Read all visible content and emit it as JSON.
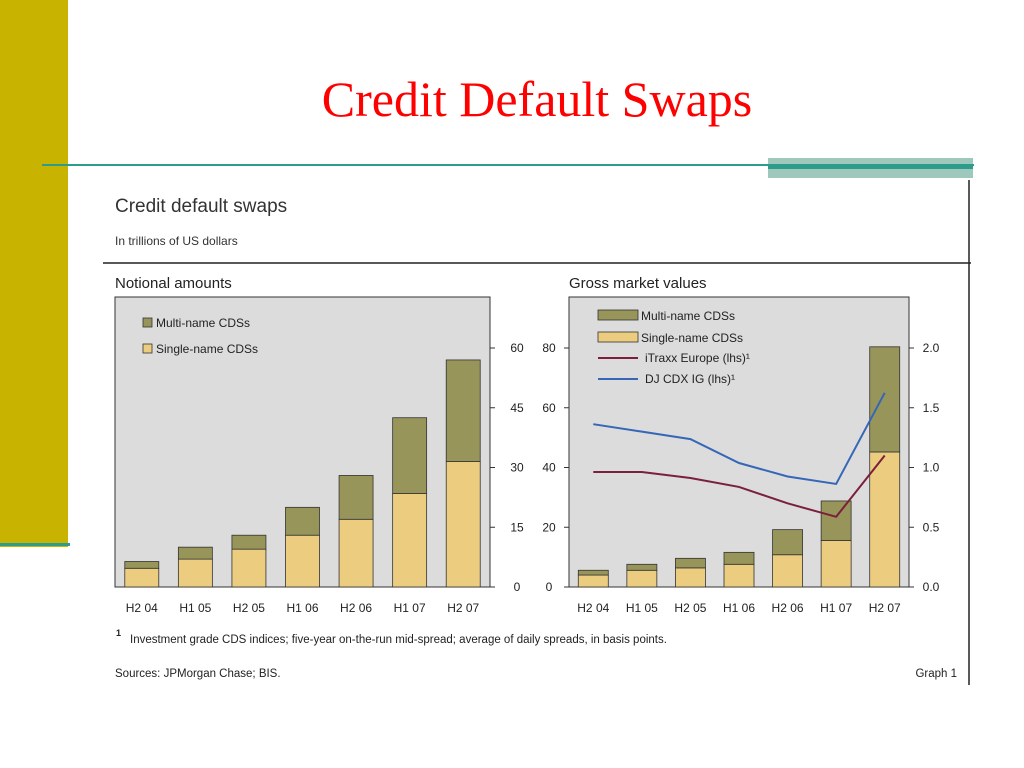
{
  "slide": {
    "title": "Credit Default Swaps"
  },
  "figure": {
    "title": "Credit default swaps",
    "subtitle": "In trillions of US dollars",
    "footnote_marker": "1",
    "footnote": "Investment grade CDS indices; five-year on-the-run mid-spread; average of daily spreads, in basis points.",
    "sources": "Sources: JPMorgan Chase; BIS.",
    "graph_label": "Graph 1"
  },
  "colors": {
    "multi": "#97955a",
    "single": "#eccd80",
    "itraxx": "#7a1f3c",
    "cdx": "#3566b8",
    "panel_bg": "#dcdcdc",
    "accent_title": "#ff0000",
    "side_bar": "#c8b400"
  },
  "chart_data": [
    {
      "type": "bar",
      "title": "Notional amounts",
      "stacked": true,
      "categories": [
        "H2 04",
        "H1 05",
        "H2 05",
        "H1 06",
        "H2 06",
        "H1 07",
        "H2 07"
      ],
      "series": [
        {
          "name": "Single-name CDSs",
          "values": [
            4.7,
            7.0,
            9.5,
            13.0,
            17.0,
            23.5,
            31.5
          ]
        },
        {
          "name": "Multi-name CDSs",
          "values": [
            1.7,
            3.0,
            3.5,
            7.0,
            11.0,
            19.0,
            25.5
          ]
        }
      ],
      "y_axis_side": "right",
      "yticks": [
        0,
        15,
        30,
        45,
        60
      ],
      "ylim": [
        0,
        60
      ],
      "legend": "top-left"
    },
    {
      "type": "bar",
      "title": "Gross market values",
      "stacked": true,
      "categories": [
        "H2 04",
        "H1 05",
        "H2 05",
        "H1 06",
        "H2 06",
        "H1 07",
        "H2 07"
      ],
      "series": [
        {
          "name": "Single-name CDSs",
          "axis": "right",
          "values": [
            0.1,
            0.14,
            0.16,
            0.19,
            0.27,
            0.39,
            1.13
          ]
        },
        {
          "name": "Multi-name CDSs",
          "axis": "right",
          "values": [
            0.04,
            0.05,
            0.08,
            0.1,
            0.21,
            0.33,
            0.88
          ]
        }
      ],
      "lines": [
        {
          "name": "iTraxx Europe (lhs)¹",
          "axis": "left",
          "values": [
            38.5,
            38.5,
            36.5,
            33.5,
            28,
            23.5,
            44
          ]
        },
        {
          "name": "DJ CDX IG (lhs)¹",
          "axis": "left",
          "values": [
            54.5,
            52,
            49.5,
            41.5,
            37,
            34.5,
            65
          ]
        }
      ],
      "left_yticks": [
        0,
        20,
        40,
        60,
        80
      ],
      "left_ylim": [
        0,
        80
      ],
      "right_yticks": [
        "0.0",
        "0.5",
        "1.0",
        "1.5",
        "2.0"
      ],
      "right_ylim": [
        0,
        2.0
      ],
      "legend": "top-left"
    }
  ]
}
